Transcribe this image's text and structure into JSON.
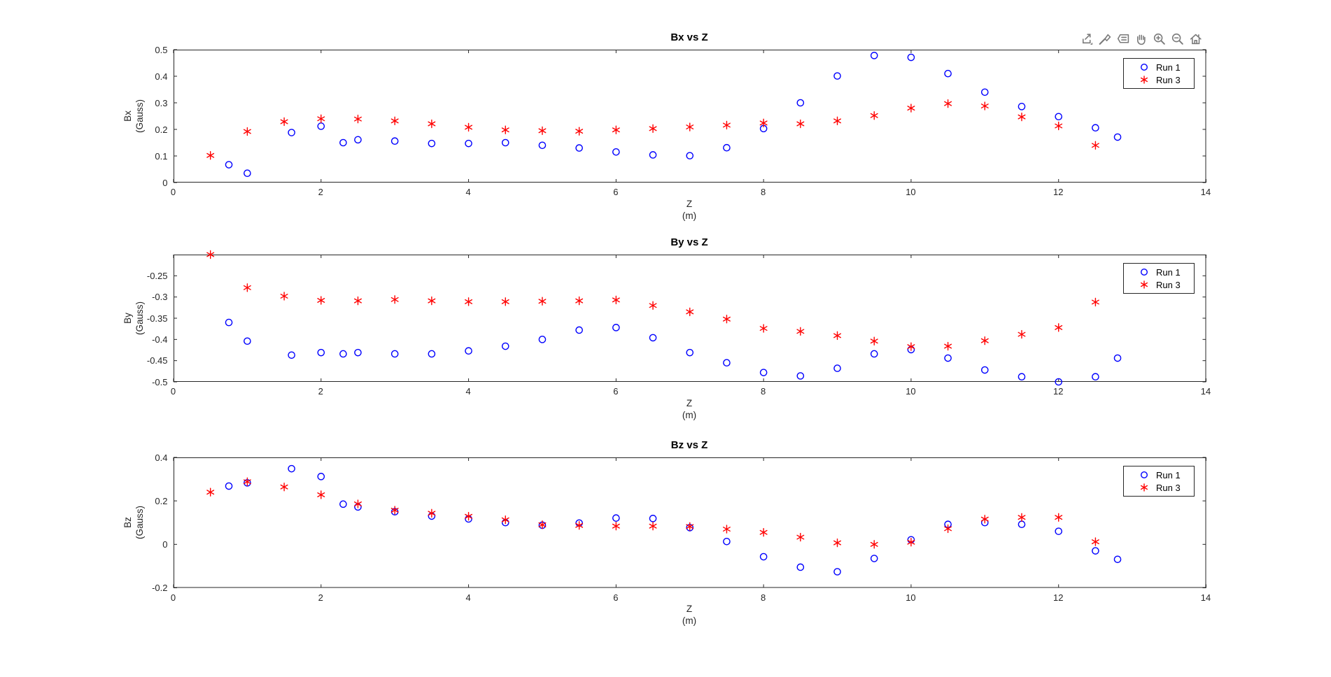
{
  "app": {
    "background": "#ffffff"
  },
  "style": {
    "axis_color": "#262626",
    "tick_label_color": "#262626",
    "title_color": "#000000",
    "run1_color": "#0000ff",
    "run3_color": "#ff0000",
    "toolbar_icon_color": "#7a7a7a",
    "legend_border_color": "#262626"
  },
  "toolbar": {
    "icons": [
      "export-icon",
      "brush-icon",
      "datatips-icon",
      "pan-icon",
      "zoom-in-icon",
      "zoom-out-icon",
      "home-icon"
    ]
  },
  "legend": {
    "entries": [
      {
        "label": "Run 1",
        "marker": "circle",
        "color": "#0000ff"
      },
      {
        "label": "Run 3",
        "marker": "asterisk",
        "color": "#ff0000"
      }
    ]
  },
  "chart_data": [
    {
      "type": "scatter",
      "title": "Bx vs Z",
      "xlabel": [
        "Z",
        "(m)"
      ],
      "ylabel": [
        "Bx",
        "(Gauss)"
      ],
      "xlim": [
        0,
        14
      ],
      "ylim": [
        0,
        0.5
      ],
      "xticks": [
        0,
        2,
        4,
        6,
        8,
        10,
        12,
        14
      ],
      "yticks": [
        0,
        0.1,
        0.2,
        0.3,
        0.4,
        0.5
      ],
      "grid": false,
      "legend_position": "northeast",
      "series": [
        {
          "name": "Run 1",
          "marker": "circle",
          "color": "#0000ff",
          "x": [
            0.75,
            1.0,
            1.6,
            2.0,
            2.3,
            2.5,
            3.0,
            3.5,
            4.0,
            4.5,
            5.0,
            5.5,
            6.0,
            6.5,
            7.0,
            7.5,
            8.0,
            8.5,
            9.0,
            9.5,
            10.0,
            10.5,
            11.0,
            11.5,
            12.0,
            12.5,
            12.8
          ],
          "y": [
            0.067,
            0.035,
            0.188,
            0.212,
            0.15,
            0.161,
            0.156,
            0.147,
            0.147,
            0.15,
            0.14,
            0.13,
            0.115,
            0.104,
            0.101,
            0.131,
            0.203,
            0.3,
            0.401,
            0.478,
            0.471,
            0.41,
            0.34,
            0.286,
            0.248,
            0.206,
            0.171
          ]
        },
        {
          "name": "Run 3",
          "marker": "asterisk",
          "color": "#ff0000",
          "x": [
            0.5,
            1.0,
            1.5,
            2.0,
            2.5,
            3.0,
            3.5,
            4.0,
            4.5,
            5.0,
            5.5,
            6.0,
            6.5,
            7.0,
            7.5,
            8.0,
            8.5,
            9.0,
            9.5,
            10.0,
            10.5,
            11.0,
            11.5,
            12.0,
            12.5
          ],
          "y": [
            0.102,
            0.192,
            0.229,
            0.24,
            0.239,
            0.232,
            0.221,
            0.208,
            0.198,
            0.195,
            0.193,
            0.198,
            0.203,
            0.209,
            0.216,
            0.224,
            0.221,
            0.232,
            0.252,
            0.28,
            0.297,
            0.288,
            0.247,
            0.213,
            0.14
          ]
        }
      ]
    },
    {
      "type": "scatter",
      "title": "By vs Z",
      "xlabel": [
        "Z",
        "(m)"
      ],
      "ylabel": [
        "By",
        "(Gauss)"
      ],
      "xlim": [
        0,
        14
      ],
      "ylim": [
        -0.5,
        -0.2
      ],
      "xticks": [
        0,
        2,
        4,
        6,
        8,
        10,
        12,
        14
      ],
      "yticks": [
        -0.5,
        -0.45,
        -0.4,
        -0.35,
        -0.3,
        -0.25
      ],
      "grid": false,
      "legend_position": "northeast",
      "series": [
        {
          "name": "Run 1",
          "marker": "circle",
          "color": "#0000ff",
          "x": [
            0.75,
            1.0,
            1.6,
            2.0,
            2.3,
            2.5,
            3.0,
            3.5,
            4.0,
            4.5,
            5.0,
            5.5,
            6.0,
            6.5,
            7.0,
            7.5,
            8.0,
            8.5,
            9.0,
            9.5,
            10.0,
            10.5,
            11.0,
            11.5,
            12.0,
            12.5,
            12.8
          ],
          "y": [
            -0.36,
            -0.404,
            -0.437,
            -0.431,
            -0.434,
            -0.431,
            -0.434,
            -0.434,
            -0.427,
            -0.416,
            -0.4,
            -0.378,
            -0.372,
            -0.396,
            -0.431,
            -0.455,
            -0.478,
            -0.486,
            -0.468,
            -0.434,
            -0.424,
            -0.444,
            -0.472,
            -0.488,
            -0.5,
            -0.488,
            -0.444
          ]
        },
        {
          "name": "Run 3",
          "marker": "asterisk",
          "color": "#ff0000",
          "x": [
            0.5,
            1.0,
            1.5,
            2.0,
            2.5,
            3.0,
            3.5,
            4.0,
            4.5,
            5.0,
            5.5,
            6.0,
            6.5,
            7.0,
            7.5,
            8.0,
            8.5,
            9.0,
            9.5,
            10.0,
            10.5,
            11.0,
            11.5,
            12.0,
            12.5
          ],
          "y": [
            -0.2,
            -0.278,
            -0.298,
            -0.308,
            -0.309,
            -0.306,
            -0.309,
            -0.311,
            -0.311,
            -0.31,
            -0.309,
            -0.307,
            -0.32,
            -0.335,
            -0.352,
            -0.374,
            -0.381,
            -0.391,
            -0.404,
            -0.417,
            -0.416,
            -0.403,
            -0.388,
            -0.372,
            -0.312
          ]
        }
      ]
    },
    {
      "type": "scatter",
      "title": "Bz vs Z",
      "xlabel": [
        "Z",
        "(m)"
      ],
      "ylabel": [
        "Bz",
        "(Gauss)"
      ],
      "xlim": [
        0,
        14
      ],
      "ylim": [
        -0.2,
        0.4
      ],
      "xticks": [
        0,
        2,
        4,
        6,
        8,
        10,
        12,
        14
      ],
      "yticks": [
        -0.2,
        0,
        0.2,
        0.4
      ],
      "grid": false,
      "legend_position": "northeast",
      "series": [
        {
          "name": "Run 1",
          "marker": "circle",
          "color": "#0000ff",
          "x": [
            0.75,
            1.0,
            1.6,
            2.0,
            2.3,
            2.5,
            3.0,
            3.5,
            4.0,
            4.5,
            5.0,
            5.5,
            6.0,
            6.5,
            7.0,
            7.5,
            8.0,
            8.5,
            9.0,
            9.5,
            10.0,
            10.5,
            11.0,
            11.5,
            12.0,
            12.5,
            12.8
          ],
          "y": [
            0.268,
            0.283,
            0.348,
            0.312,
            0.185,
            0.172,
            0.15,
            0.13,
            0.117,
            0.1,
            0.088,
            0.098,
            0.121,
            0.119,
            0.077,
            0.013,
            -0.057,
            -0.105,
            -0.126,
            -0.065,
            0.021,
            0.092,
            0.1,
            0.092,
            0.06,
            -0.03,
            -0.069
          ]
        },
        {
          "name": "Run 3",
          "marker": "asterisk",
          "color": "#ff0000",
          "x": [
            0.5,
            1.0,
            1.5,
            2.0,
            2.5,
            3.0,
            3.5,
            4.0,
            4.5,
            5.0,
            5.5,
            6.0,
            6.5,
            7.0,
            7.5,
            8.0,
            8.5,
            9.0,
            9.5,
            10.0,
            10.5,
            11.0,
            11.5,
            12.0,
            12.5
          ],
          "y": [
            0.24,
            0.288,
            0.264,
            0.228,
            0.186,
            0.157,
            0.143,
            0.129,
            0.113,
            0.09,
            0.087,
            0.084,
            0.084,
            0.082,
            0.07,
            0.055,
            0.033,
            0.007,
            0.0,
            0.01,
            0.072,
            0.116,
            0.124,
            0.124,
            0.012
          ]
        }
      ]
    }
  ]
}
